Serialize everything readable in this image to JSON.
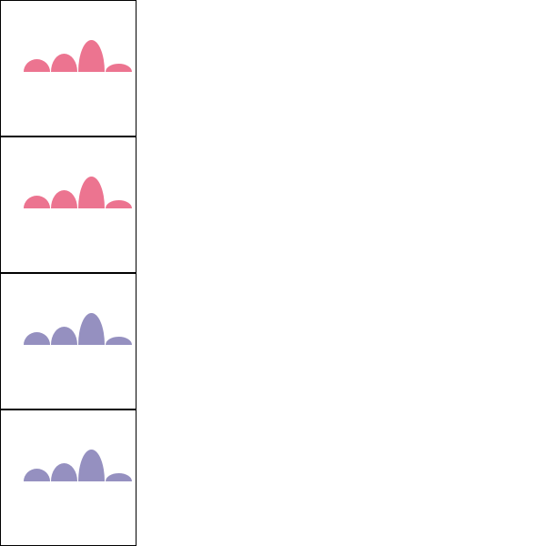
{
  "chart_data": [
    {
      "type": "bar",
      "values": [
        14,
        20,
        35,
        9
      ],
      "color": "#ec7490"
    },
    {
      "type": "bar",
      "values": [
        14,
        20,
        35,
        9
      ],
      "color": "#ec7490"
    },
    {
      "type": "bar",
      "values": [
        14,
        20,
        35,
        9
      ],
      "color": "#9590c0"
    },
    {
      "type": "bar",
      "values": [
        14,
        20,
        35,
        9
      ],
      "color": "#9590c0"
    }
  ]
}
